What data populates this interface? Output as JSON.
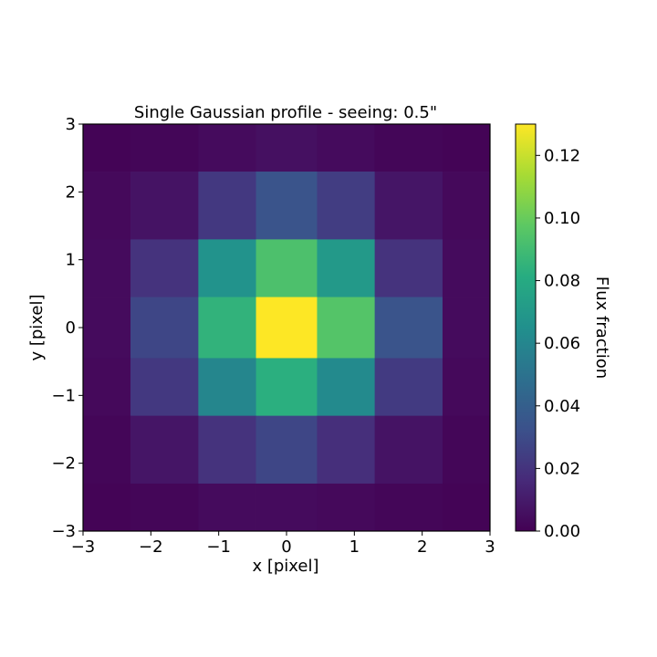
{
  "chart_data": {
    "type": "heatmap",
    "title": "Single Gaussian profile - seeing: 0.5\"",
    "xlabel": "x [pixel]",
    "ylabel": "y [pixel]",
    "xlim": [
      -3,
      3
    ],
    "ylim": [
      -3,
      3
    ],
    "x_ticks": [
      -3,
      -2,
      -1,
      0,
      1,
      2,
      3
    ],
    "y_ticks": [
      -3,
      -2,
      -1,
      0,
      1,
      2,
      3
    ],
    "x_tick_labels": [
      "−3",
      "−2",
      "−1",
      "0",
      "1",
      "2",
      "3"
    ],
    "y_tick_labels": [
      "−3",
      "−2",
      "−1",
      "0",
      "1",
      "2",
      "3"
    ],
    "x_edges": [
      -3.0,
      -2.3,
      -1.3,
      -0.45,
      0.45,
      1.3,
      2.3,
      3.0
    ],
    "y_edges": [
      -3.0,
      -2.3,
      -1.3,
      -0.45,
      0.45,
      1.3,
      2.3,
      3.0
    ],
    "values": [
      [
        0.001,
        0.002,
        0.004,
        0.006,
        0.004,
        0.002,
        0.001
      ],
      [
        0.003,
        0.007,
        0.022,
        0.034,
        0.024,
        0.008,
        0.003
      ],
      [
        0.004,
        0.02,
        0.067,
        0.093,
        0.07,
        0.02,
        0.004
      ],
      [
        0.004,
        0.028,
        0.085,
        0.13,
        0.095,
        0.034,
        0.004
      ],
      [
        0.003,
        0.022,
        0.06,
        0.083,
        0.062,
        0.023,
        0.003
      ],
      [
        0.002,
        0.008,
        0.02,
        0.028,
        0.018,
        0.007,
        0.002
      ],
      [
        0.001,
        0.002,
        0.004,
        0.004,
        0.003,
        0.002,
        0.001
      ]
    ],
    "grid": false,
    "colormap": "viridis",
    "colorbar": {
      "label": "Flux fraction",
      "min": 0.0,
      "max": 0.13,
      "ticks": [
        0.0,
        0.02,
        0.04,
        0.06,
        0.08,
        0.1,
        0.12
      ],
      "tick_labels": [
        "0.00",
        "0.02",
        "0.04",
        "0.06",
        "0.08",
        "0.10",
        "0.12"
      ]
    }
  }
}
